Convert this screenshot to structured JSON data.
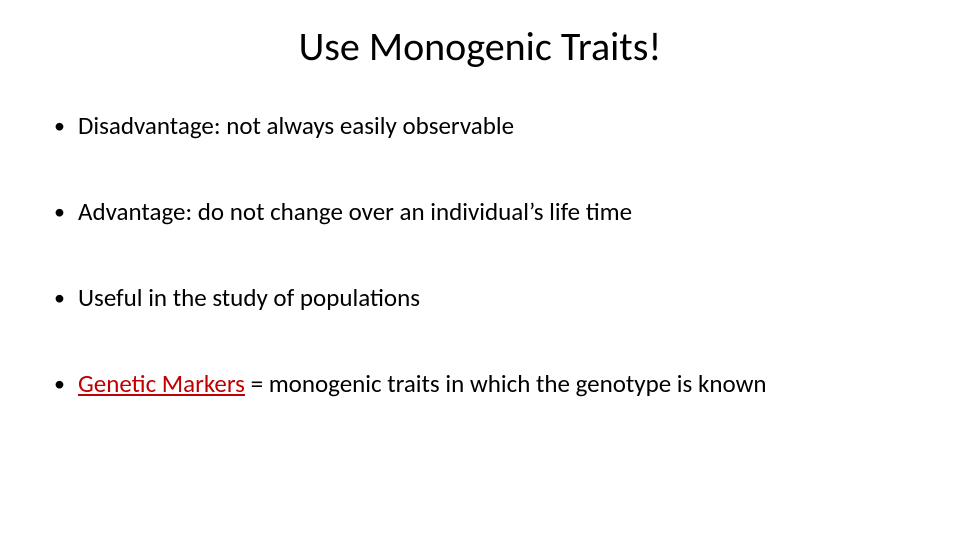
{
  "colors": {
    "background": "#ffffff",
    "text": "#000000",
    "bullet": "#000000",
    "accent_red": "#c00000"
  },
  "typography": {
    "family": "Calibri",
    "title_fontsize_pt": 40,
    "body_fontsize_pt": 25
  },
  "title": "Use Monogenic Traits!",
  "bullets": [
    {
      "text": "Disadvantage: not always easily observable"
    },
    {
      "text": "Advantage: do not change over an individual’s life time"
    },
    {
      "text": "Useful in the study of populations"
    },
    {
      "marker_term": "Genetic Markers",
      "rest": " = monogenic traits in which the genotype is known"
    }
  ]
}
